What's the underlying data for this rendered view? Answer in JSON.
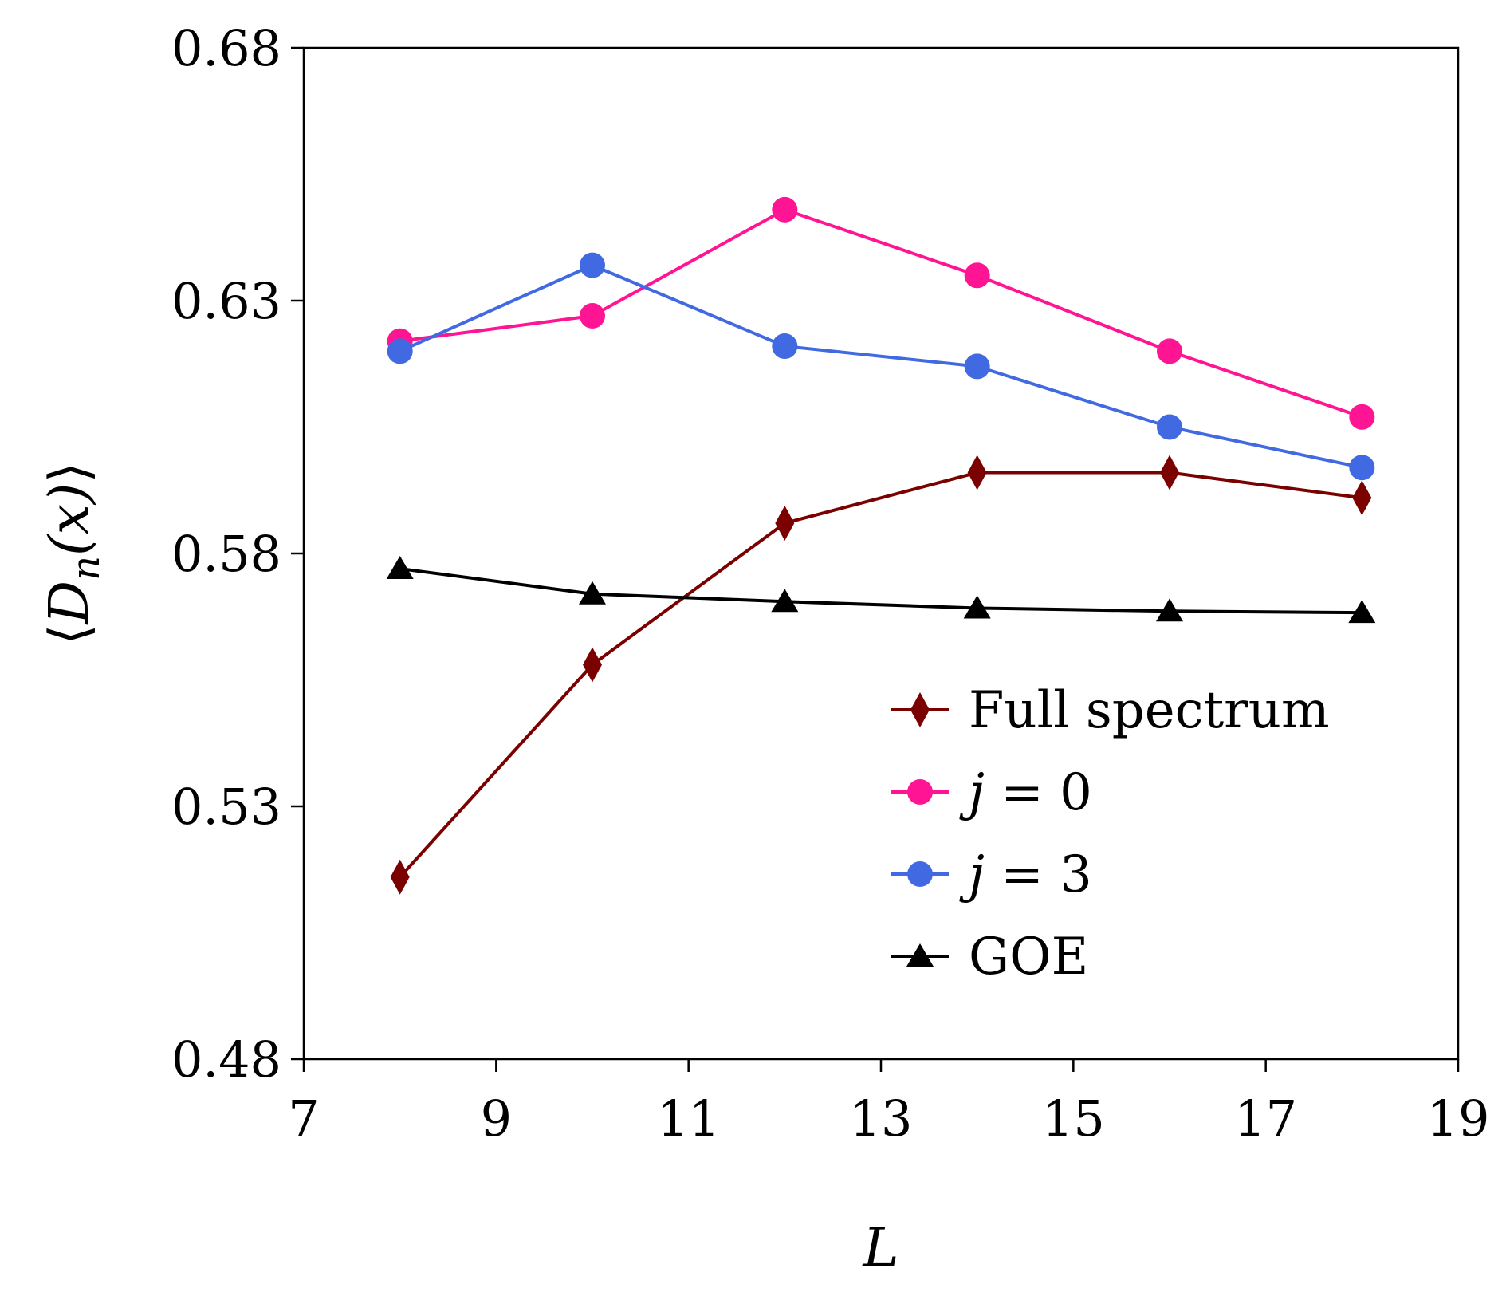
{
  "chart_data": {
    "type": "line",
    "title": "",
    "xlabel": "L",
    "ylabel": "⟨D_n(x)⟩",
    "ylabel_parts": {
      "open": "⟨",
      "main": "D",
      "sub": "n",
      "arg": "(x)",
      "close": "⟩"
    },
    "xlim": [
      7,
      19
    ],
    "ylim": [
      0.48,
      0.68
    ],
    "xticks": [
      "7",
      "9",
      "11",
      "13",
      "15",
      "17",
      "19"
    ],
    "yticks": [
      "0.48",
      "0.53",
      "0.58",
      "0.63",
      "0.68"
    ],
    "x": [
      8,
      10,
      12,
      14,
      16,
      18
    ],
    "legend_position": "lower-right",
    "series": [
      {
        "name": "Full spectrum",
        "label_parts": [
          "Full spectrum"
        ],
        "color": "#7b0000",
        "marker": "diamond",
        "values": [
          0.516,
          0.558,
          0.586,
          0.596,
          0.596,
          0.591
        ]
      },
      {
        "name": "j = 0",
        "label_parts": [
          "j",
          " = 0"
        ],
        "color": "#ff1493",
        "marker": "circle",
        "values": [
          0.622,
          0.627,
          0.648,
          0.635,
          0.62,
          0.607
        ]
      },
      {
        "name": "j = 3",
        "label_parts": [
          "j",
          " = 3"
        ],
        "color": "#4169e1",
        "marker": "circle",
        "values": [
          0.62,
          0.637,
          0.621,
          0.617,
          0.605,
          0.597
        ]
      },
      {
        "name": "GOE",
        "label_parts": [
          "GOE"
        ],
        "color": "#000000",
        "marker": "triangle",
        "values": [
          0.577,
          0.572,
          0.5705,
          0.5692,
          0.5686,
          0.5683
        ]
      }
    ]
  }
}
